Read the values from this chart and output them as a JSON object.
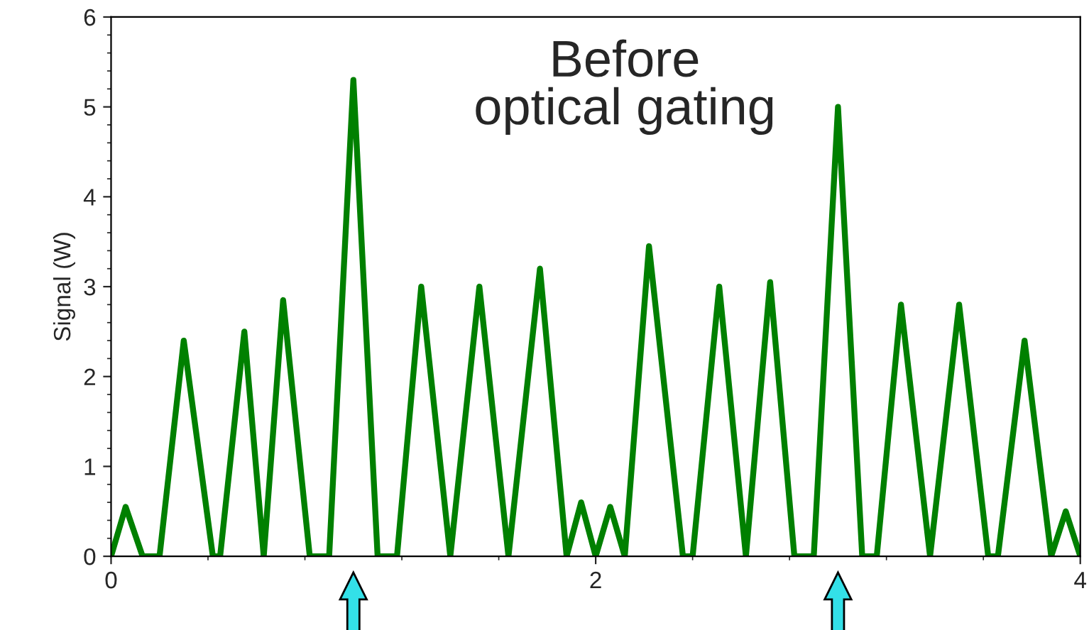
{
  "chart_data": {
    "type": "line",
    "ylabel": "Signal (W)",
    "x": [
      0,
      0.06,
      0.13,
      0.2,
      0.3,
      0.42,
      0.45,
      0.55,
      0.63,
      0.71,
      0.82,
      0.9,
      1.0,
      1.1,
      1.18,
      1.28,
      1.4,
      1.52,
      1.64,
      1.77,
      1.88,
      1.94,
      2.0,
      2.06,
      2.12,
      2.22,
      2.36,
      2.4,
      2.51,
      2.62,
      2.72,
      2.82,
      2.9,
      3.0,
      3.1,
      3.16,
      3.26,
      3.38,
      3.5,
      3.62,
      3.66,
      3.77,
      3.88,
      3.94,
      4.0
    ],
    "series": [
      {
        "color": "#008000",
        "values": [
          0,
          0.55,
          0,
          0,
          2.4,
          0,
          0,
          2.5,
          0,
          2.85,
          0,
          0,
          5.3,
          0,
          0,
          3.0,
          0,
          3.0,
          0,
          3.2,
          0,
          0.6,
          0,
          0.55,
          0,
          3.45,
          0,
          0,
          3.0,
          0,
          3.05,
          0,
          0,
          5.0,
          0,
          0,
          2.8,
          0,
          2.8,
          0,
          0,
          2.4,
          0,
          0.5,
          0
        ]
      }
    ],
    "xlim": [
      0,
      4
    ],
    "xticks": [
      0,
      2,
      4
    ],
    "ylim": [
      0,
      6
    ],
    "yticks": [
      0,
      1,
      2,
      3,
      4,
      5,
      6
    ],
    "grid": false,
    "annotations": [
      "Before\noptical gating"
    ]
  }
}
